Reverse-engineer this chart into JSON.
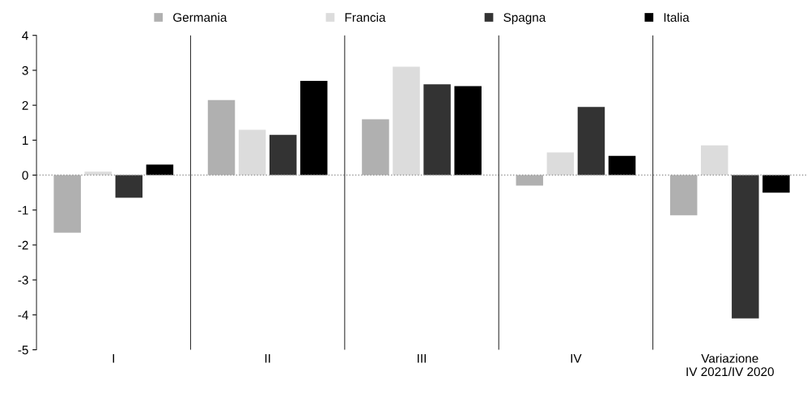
{
  "chart_data": {
    "type": "bar",
    "categories": [
      "I",
      "II",
      "III",
      "IV",
      "Variazione\nIV 2021/IV 2020"
    ],
    "series": [
      {
        "name": "Germania",
        "color": "#b0b0b0",
        "values": [
          -1.65,
          2.15,
          1.6,
          -0.3,
          -1.15
        ]
      },
      {
        "name": "Francia",
        "color": "#dcdcdc",
        "values": [
          0.1,
          1.3,
          3.1,
          0.65,
          0.85
        ]
      },
      {
        "name": "Spagna",
        "color": "#333333",
        "values": [
          -0.65,
          1.15,
          2.6,
          1.95,
          -4.1
        ]
      },
      {
        "name": "Italia",
        "color": "#000000",
        "values": [
          0.3,
          2.7,
          2.55,
          0.55,
          -0.5
        ]
      }
    ],
    "ylim": [
      -5,
      4
    ],
    "yticks": [
      -5,
      -4,
      -3,
      -2,
      -1,
      0,
      1,
      2,
      3,
      4
    ],
    "ref_lines": [
      {
        "axis": "y",
        "value": 0,
        "color": "#999999",
        "line_style": "dotted"
      }
    ],
    "grid": "x",
    "legend": "top"
  }
}
